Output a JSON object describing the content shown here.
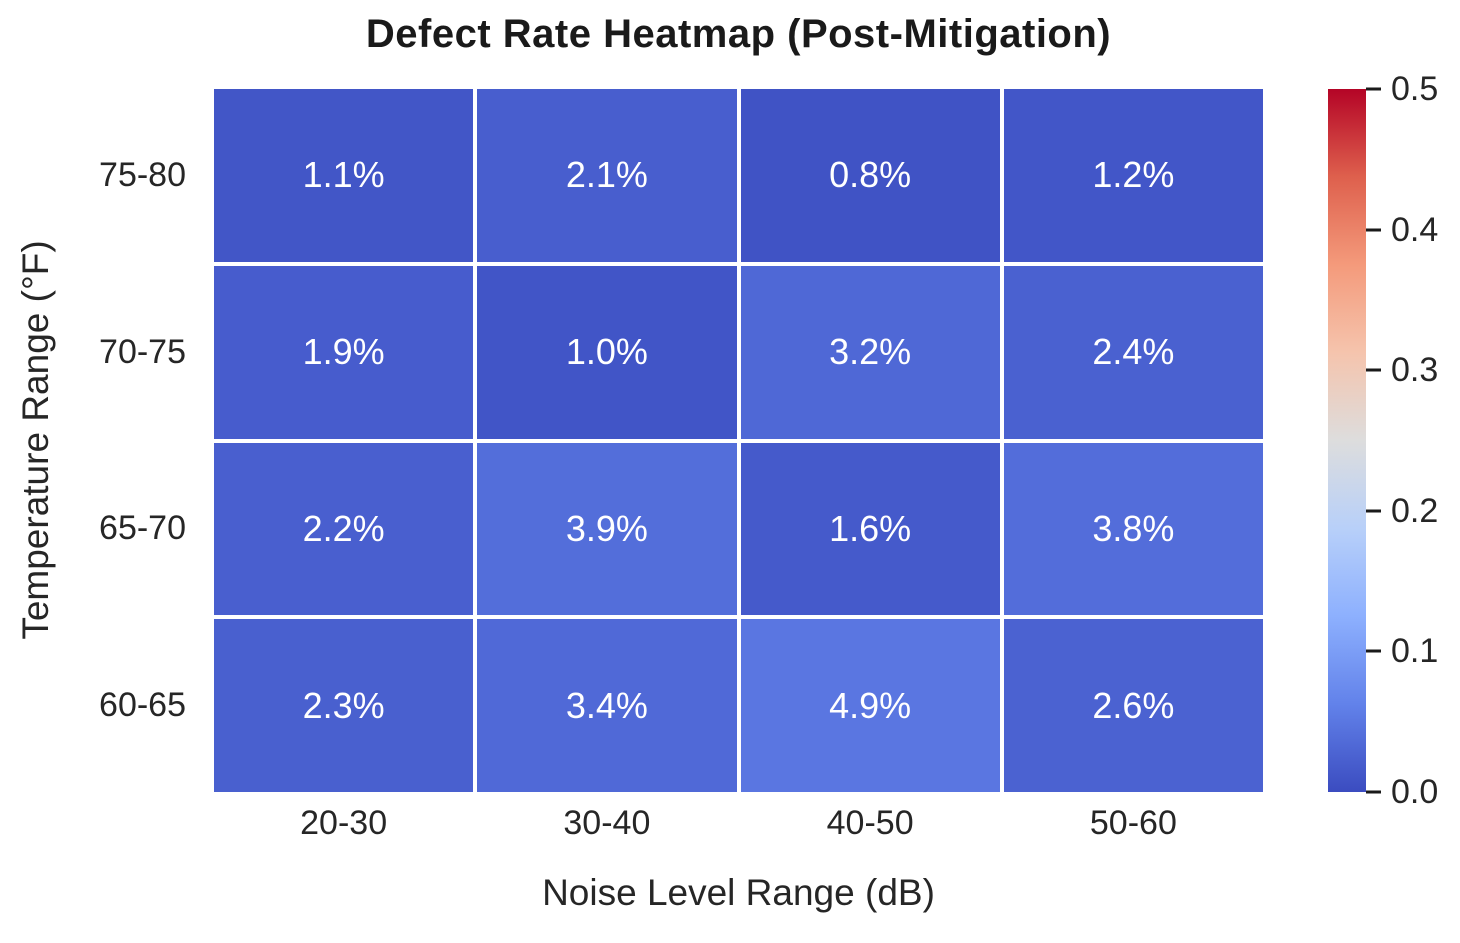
{
  "figure": {
    "title": "Defect Rate Heatmap (Post-Mitigation)",
    "xlabel": "Noise Level Range (dB)",
    "ylabel": "Temperature Range (°F)"
  },
  "chart_data": {
    "type": "heatmap",
    "title": "Defect Rate Heatmap (Post-Mitigation)",
    "xlabel": "Noise Level Range (dB)",
    "ylabel": "Temperature Range (°F)",
    "columns": [
      "20-30",
      "30-40",
      "40-50",
      "50-60"
    ],
    "rows": [
      "75-80",
      "70-75",
      "65-70",
      "60-65"
    ],
    "values_percent": [
      [
        1.1,
        2.1,
        0.8,
        1.2
      ],
      [
        1.9,
        1.0,
        3.2,
        2.4
      ],
      [
        2.2,
        3.9,
        1.6,
        3.8
      ],
      [
        2.3,
        3.4,
        4.9,
        2.6
      ]
    ],
    "cell_labels": [
      [
        "1.1%",
        "2.1%",
        "0.8%",
        "1.2%"
      ],
      [
        "1.9%",
        "1.0%",
        "3.2%",
        "2.4%"
      ],
      [
        "2.2%",
        "3.9%",
        "1.6%",
        "3.8%"
      ],
      [
        "2.3%",
        "3.4%",
        "4.9%",
        "2.6%"
      ]
    ],
    "cell_text_color": "#ffffff",
    "grid_line_color": "#ffffff",
    "colormap": "coolwarm",
    "colorbar": {
      "vmin": 0.0,
      "vmax": 0.5,
      "tick_labels_bottom_to_top": [
        "0.0",
        "0.1",
        "0.2",
        "0.3",
        "0.4",
        "0.5"
      ]
    },
    "colormap_stops_bottom_to_top": [
      {
        "pos": 0.0,
        "color": "#3B4CC0"
      },
      {
        "pos": 0.125,
        "color": "#6282EA"
      },
      {
        "pos": 0.25,
        "color": "#8DB0FE"
      },
      {
        "pos": 0.375,
        "color": "#B8D0F9"
      },
      {
        "pos": 0.5,
        "color": "#DDDDDD"
      },
      {
        "pos": 0.625,
        "color": "#F5C4AD"
      },
      {
        "pos": 0.75,
        "color": "#F49A7B"
      },
      {
        "pos": 0.875,
        "color": "#DE604D"
      },
      {
        "pos": 1.0,
        "color": "#B40426"
      }
    ]
  }
}
